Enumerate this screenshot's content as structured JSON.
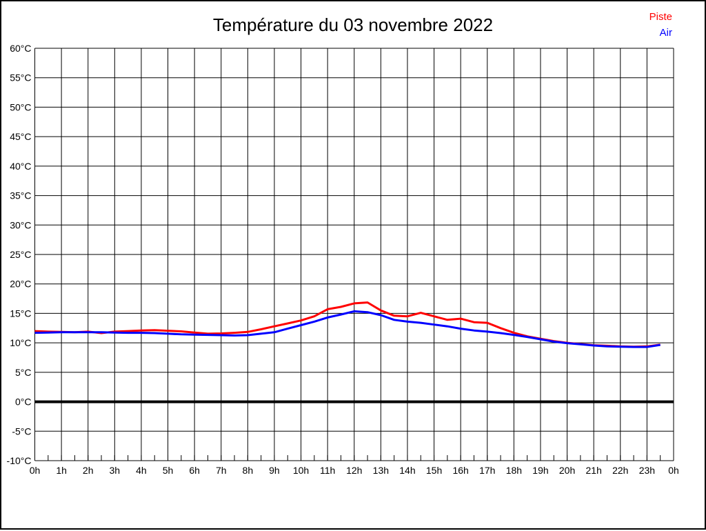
{
  "title": "Température du 03 novembre 2022",
  "legend": {
    "position": "top-right",
    "items": [
      {
        "label": "Piste",
        "color": "#ff0000"
      },
      {
        "label": "Air",
        "color": "#0000ff"
      }
    ]
  },
  "colors": {
    "background": "#ffffff",
    "border": "#000000",
    "grid": "#000000",
    "zero_line": "#000000",
    "piste": "#ff0000",
    "air": "#0000ff"
  },
  "chart_data": {
    "type": "line",
    "title": "Température du 03 novembre 2022",
    "xlabel": "",
    "ylabel": "",
    "xlim": [
      0,
      24
    ],
    "ylim": [
      -10,
      60
    ],
    "y_step": 5,
    "x_step": 1,
    "x_minor_tick_step": 0.5,
    "grid": true,
    "zero_line_value": 0,
    "legend_position": "top-right",
    "y_tick_labels": [
      "60°C",
      "55°C",
      "50°C",
      "45°C",
      "40°C",
      "35°C",
      "30°C",
      "25°C",
      "20°C",
      "15°C",
      "10°C",
      "5°C",
      "0°C",
      "-5°C",
      "-10°C"
    ],
    "x_tick_labels": [
      "0h",
      "1h",
      "2h",
      "3h",
      "4h",
      "5h",
      "6h",
      "7h",
      "8h",
      "9h",
      "10h",
      "11h",
      "12h",
      "13h",
      "14h",
      "15h",
      "16h",
      "17h",
      "18h",
      "19h",
      "20h",
      "21h",
      "22h",
      "23h",
      "0h"
    ],
    "x": [
      0,
      0.5,
      1,
      1.5,
      2,
      2.5,
      3,
      3.5,
      4,
      4.5,
      5,
      5.5,
      6,
      6.5,
      7,
      7.5,
      8,
      8.5,
      9,
      9.5,
      10,
      10.5,
      11,
      11.5,
      12,
      12.5,
      13,
      13.5,
      14,
      14.5,
      15,
      15.5,
      16,
      16.5,
      17,
      17.5,
      18,
      18.5,
      19,
      19.5,
      20,
      20.5,
      21,
      21.5,
      22,
      22.5,
      23,
      23.5
    ],
    "series": [
      {
        "name": "Piste",
        "color": "#ff0000",
        "values": [
          12.0,
          11.9,
          11.85,
          11.8,
          11.9,
          11.65,
          11.9,
          12.0,
          12.1,
          12.15,
          12.05,
          11.95,
          11.75,
          11.55,
          11.6,
          11.7,
          11.85,
          12.3,
          12.8,
          13.3,
          13.8,
          14.5,
          15.7,
          16.1,
          16.7,
          16.85,
          15.5,
          14.6,
          14.5,
          15.1,
          14.5,
          13.9,
          14.1,
          13.5,
          13.4,
          12.5,
          11.7,
          11.1,
          10.7,
          10.3,
          10.0,
          9.8,
          9.6,
          9.5,
          9.4,
          9.35,
          9.4,
          9.7
        ]
      },
      {
        "name": "Air",
        "color": "#0000ff",
        "values": [
          11.7,
          11.75,
          11.8,
          11.8,
          11.8,
          11.8,
          11.75,
          11.7,
          11.7,
          11.65,
          11.55,
          11.45,
          11.4,
          11.35,
          11.3,
          11.25,
          11.3,
          11.55,
          11.8,
          12.4,
          13.0,
          13.6,
          14.3,
          14.8,
          15.35,
          15.2,
          14.7,
          13.9,
          13.6,
          13.4,
          13.1,
          12.8,
          12.4,
          12.1,
          11.9,
          11.65,
          11.35,
          11.0,
          10.6,
          10.2,
          9.95,
          9.75,
          9.55,
          9.4,
          9.35,
          9.3,
          9.3,
          9.65
        ]
      }
    ]
  }
}
